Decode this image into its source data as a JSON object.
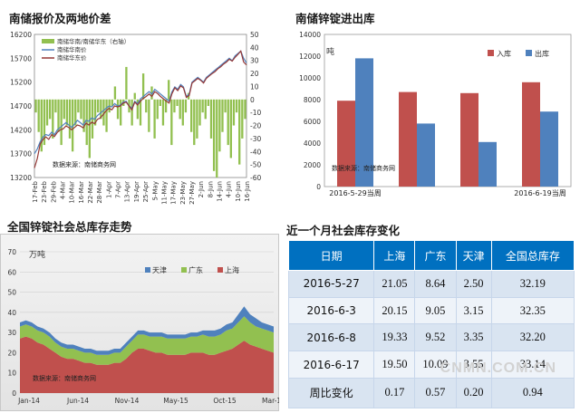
{
  "watermark": "CNMN.COM.CN",
  "chart_data": [
    {
      "type": "bar",
      "title": "南储报价及两地价差",
      "y_left_ticks": [
        "16200",
        "15700",
        "15200",
        "14700",
        "14200",
        "13700",
        "13200"
      ],
      "y_right_ticks": [
        "50",
        "40",
        "30",
        "20",
        "10",
        "0",
        "-10",
        "-20",
        "-30",
        "-40",
        "-50",
        "-60"
      ],
      "x_ticks": [
        "17-Feb",
        "23-Feb",
        "29-Feb",
        "4-Mar",
        "10-Mar",
        "16-Mar",
        "22-Mar",
        "28-Mar",
        "1-Apr",
        "7-Apr",
        "13-Apr",
        "19-Apr",
        "25-Apr",
        "5-May",
        "11-May",
        "17-May",
        "23-May",
        "27-May",
        "2-Jun",
        "8-Jun",
        "14-Jun",
        "4-Jun",
        "10-Jun",
        "16-Jun"
      ],
      "legend": [
        "南储华南/南储华东（右轴）",
        "南储华南价",
        "南储华东价"
      ],
      "source_note": "数据来源：南储商务网",
      "ylim": [
        13200,
        16200
      ],
      "y2lim": [
        -60,
        50
      ],
      "colors": {
        "spread": "#92c050",
        "south": "#4f81bd",
        "east": "#953735"
      },
      "south_price": [
        13700,
        13800,
        13950,
        14050,
        14100,
        14080,
        14150,
        14100,
        14200,
        14250,
        14300,
        14350,
        14300,
        14250,
        14320,
        14400,
        14350,
        14300,
        14400,
        14380,
        14450,
        14420,
        14500,
        14550,
        14600,
        14650,
        14700,
        14680,
        14750,
        14700,
        14720,
        14780,
        14800,
        14700,
        14650,
        14800,
        14750,
        14850,
        14900,
        14950,
        15000,
        14950,
        15050,
        15000,
        14950,
        14900,
        14850,
        14800,
        15000,
        15100,
        15050,
        15150,
        15100,
        14900,
        14950,
        15200,
        15250,
        15300,
        15250,
        15200,
        15300,
        15350,
        15400,
        15450,
        15500,
        15550,
        15600,
        15650,
        15700,
        15650,
        15750,
        15800,
        15850,
        15700,
        15600
      ],
      "east_price": [
        13400,
        13600,
        13900,
        14000,
        14050,
        14000,
        14100,
        14060,
        14150,
        14200,
        14220,
        14280,
        14250,
        14200,
        14250,
        14300,
        14280,
        14240,
        14340,
        14300,
        14360,
        14330,
        14420,
        14450,
        14520,
        14600,
        14650,
        14620,
        14700,
        14680,
        14700,
        14760,
        14780,
        14700,
        14620,
        14780,
        14720,
        14800,
        14860,
        14900,
        14950,
        14900,
        15000,
        14960,
        14900,
        14850,
        14800,
        14760,
        14960,
        15080,
        15020,
        15120,
        15080,
        14880,
        14920,
        15180,
        15230,
        15280,
        15240,
        15180,
        15280,
        15330,
        15380,
        15420,
        15480,
        15520,
        15580,
        15620,
        15680,
        15640,
        15720,
        15780,
        15850,
        15620,
        15560
      ],
      "spread": [
        -10,
        -25,
        -40,
        -35,
        -20,
        -15,
        -30,
        -10,
        -25,
        -35,
        -15,
        -20,
        -30,
        -40,
        -20,
        -10,
        -15,
        -25,
        -35,
        -45,
        -30,
        -20,
        -10,
        -15,
        -20,
        -25,
        -10,
        -5,
        10,
        -15,
        -20,
        -5,
        25,
        -10,
        -20,
        5,
        -15,
        -20,
        20,
        -10,
        -25,
        10,
        -30,
        -15,
        -5,
        -20,
        -10,
        15,
        -35,
        -10,
        -5,
        -15,
        -20,
        -10,
        5,
        -25,
        -35,
        -30,
        -20,
        -10,
        -15,
        -5,
        -30,
        -55,
        -60,
        -40,
        -25,
        -10,
        -35,
        -45,
        -20,
        -10,
        -50,
        -30,
        -15
      ]
    },
    {
      "type": "bar",
      "title": "南储锌锭进出库",
      "unit": "吨",
      "categories": [
        "2016-5-29当周",
        "",
        "",
        "2016-6-19当周"
      ],
      "series": [
        {
          "name": "入库",
          "color": "#c0504d",
          "values": [
            7900,
            8700,
            8600,
            9600
          ]
        },
        {
          "name": "出库",
          "color": "#4f81bd",
          "values": [
            11800,
            5800,
            4100,
            6900
          ]
        }
      ],
      "ylim": [
        0,
        14000
      ],
      "y_ticks": [
        "14000",
        "12000",
        "10000",
        "8000",
        "6000",
        "4000",
        "2000",
        "0"
      ],
      "source_note": "数据来源：南储商务网"
    },
    {
      "type": "area",
      "title": "全国锌锭社会总库存走势",
      "unit": "万吨",
      "x_ticks": [
        "Jan-14",
        "Jun-14",
        "Nov-14",
        "May-15",
        "Oct-15",
        "Mar-16"
      ],
      "y_ticks": [
        "70",
        "60",
        "50",
        "40",
        "30",
        "20",
        "10",
        "0"
      ],
      "ylim": [
        0,
        70
      ],
      "source_note": "数据来源：南储商务网",
      "series": [
        {
          "name": "上海",
          "color": "#c0504d",
          "values": [
            27,
            28,
            27,
            25,
            24,
            22,
            20,
            18,
            17,
            17,
            16,
            15,
            15,
            14,
            14,
            14,
            15,
            15,
            17,
            20,
            22,
            22,
            21,
            20,
            20,
            19,
            19,
            19,
            19,
            20,
            20,
            20,
            19,
            19,
            20,
            21,
            22,
            24,
            26,
            24,
            23,
            22,
            21,
            20
          ]
        },
        {
          "name": "广东",
          "color": "#92c050",
          "values": [
            6,
            6,
            6,
            6,
            6,
            6,
            5,
            5,
            5,
            5,
            5,
            5,
            5,
            5,
            5,
            5,
            5,
            5,
            6,
            6,
            7,
            7,
            7,
            8,
            8,
            8,
            8,
            8,
            8,
            8,
            8,
            9,
            9,
            9,
            9,
            10,
            10,
            11,
            12,
            11,
            10,
            10,
            10,
            10
          ]
        },
        {
          "name": "天津",
          "color": "#4f81bd",
          "values": [
            2,
            2,
            2,
            2,
            2,
            2,
            2,
            2,
            2,
            2,
            2,
            2,
            2,
            2,
            2,
            2,
            2,
            2,
            2,
            2,
            2,
            2,
            2,
            2,
            2,
            2,
            2,
            2,
            2,
            2,
            2,
            2,
            3,
            3,
            3,
            3,
            3,
            4,
            5,
            4,
            4,
            3,
            3,
            3
          ]
        }
      ]
    }
  ],
  "inventory_table": {
    "title": "近一个月社会库存变化",
    "headers": [
      "日期",
      "上海",
      "广东",
      "天津",
      "全国总库存"
    ],
    "rows": [
      [
        "2016-5-27",
        "21.05",
        "8.64",
        "2.50",
        "32.19"
      ],
      [
        "2016-6-3",
        "20.15",
        "9.05",
        "3.15",
        "32.35"
      ],
      [
        "2016-6-8",
        "19.33",
        "9.52",
        "3.35",
        "32.20"
      ],
      [
        "2016-6-17",
        "19.50",
        "10.09",
        "3.55",
        "33.14"
      ],
      [
        "周比变化",
        "0.17",
        "0.57",
        "0.20",
        "0.94"
      ]
    ]
  }
}
